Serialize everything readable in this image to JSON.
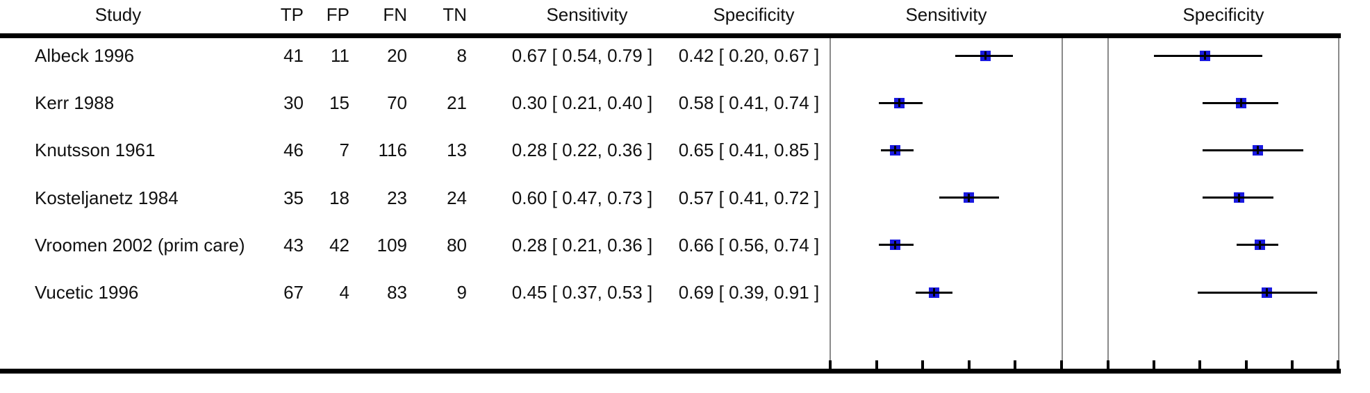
{
  "columns": {
    "study": "Study",
    "tp": "TP",
    "fp": "FP",
    "fn": "FN",
    "tn": "TN",
    "sensitivity": "Sensitivity",
    "specificity": "Specificity"
  },
  "plot_headers": {
    "sensitivity": "Sensitivity",
    "specificity": "Specificity"
  },
  "colors": {
    "marker_blue": "#1a1ae0",
    "axis_black": "#000000",
    "panel_border_gray": "#8a8a8a",
    "text": "#111111"
  },
  "chart_data": {
    "type": "forest",
    "panels": [
      {
        "title": "Sensitivity",
        "xlim": [
          0,
          1
        ],
        "ticks": [
          0,
          0.2,
          0.4,
          0.6,
          0.8,
          1
        ],
        "tick_labels_visible": false
      },
      {
        "title": "Specificity",
        "xlim": [
          0,
          1
        ],
        "ticks": [
          0,
          0.2,
          0.4,
          0.6,
          0.8,
          1
        ],
        "tick_labels_visible": false
      }
    ],
    "studies": [
      {
        "study": "Albeck 1996",
        "tp": 41,
        "fp": 11,
        "fn": 20,
        "tn": 8,
        "sensitivity": {
          "est": 0.67,
          "ci": [
            0.54,
            0.79
          ]
        },
        "specificity": {
          "est": 0.42,
          "ci": [
            0.2,
            0.67
          ]
        }
      },
      {
        "study": "Kerr 1988",
        "tp": 30,
        "fp": 15,
        "fn": 70,
        "tn": 21,
        "sensitivity": {
          "est": 0.3,
          "ci": [
            0.21,
            0.4
          ]
        },
        "specificity": {
          "est": 0.58,
          "ci": [
            0.41,
            0.74
          ]
        }
      },
      {
        "study": "Knutsson 1961",
        "tp": 46,
        "fp": 7,
        "fn": 116,
        "tn": 13,
        "sensitivity": {
          "est": 0.28,
          "ci": [
            0.22,
            0.36
          ]
        },
        "specificity": {
          "est": 0.65,
          "ci": [
            0.41,
            0.85
          ]
        }
      },
      {
        "study": "Kosteljanetz 1984",
        "tp": 35,
        "fp": 18,
        "fn": 23,
        "tn": 24,
        "sensitivity": {
          "est": 0.6,
          "ci": [
            0.47,
            0.73
          ]
        },
        "specificity": {
          "est": 0.57,
          "ci": [
            0.41,
            0.72
          ]
        }
      },
      {
        "study": "Vroomen 2002 (prim care)",
        "tp": 43,
        "fp": 42,
        "fn": 109,
        "tn": 80,
        "sensitivity": {
          "est": 0.28,
          "ci": [
            0.21,
            0.36
          ]
        },
        "specificity": {
          "est": 0.66,
          "ci": [
            0.56,
            0.74
          ]
        }
      },
      {
        "study": "Vucetic 1996",
        "tp": 67,
        "fp": 4,
        "fn": 83,
        "tn": 9,
        "sensitivity": {
          "est": 0.45,
          "ci": [
            0.37,
            0.53
          ]
        },
        "specificity": {
          "est": 0.69,
          "ci": [
            0.39,
            0.91
          ]
        }
      }
    ],
    "ci_text_format": "est [ lo, hi ]"
  }
}
